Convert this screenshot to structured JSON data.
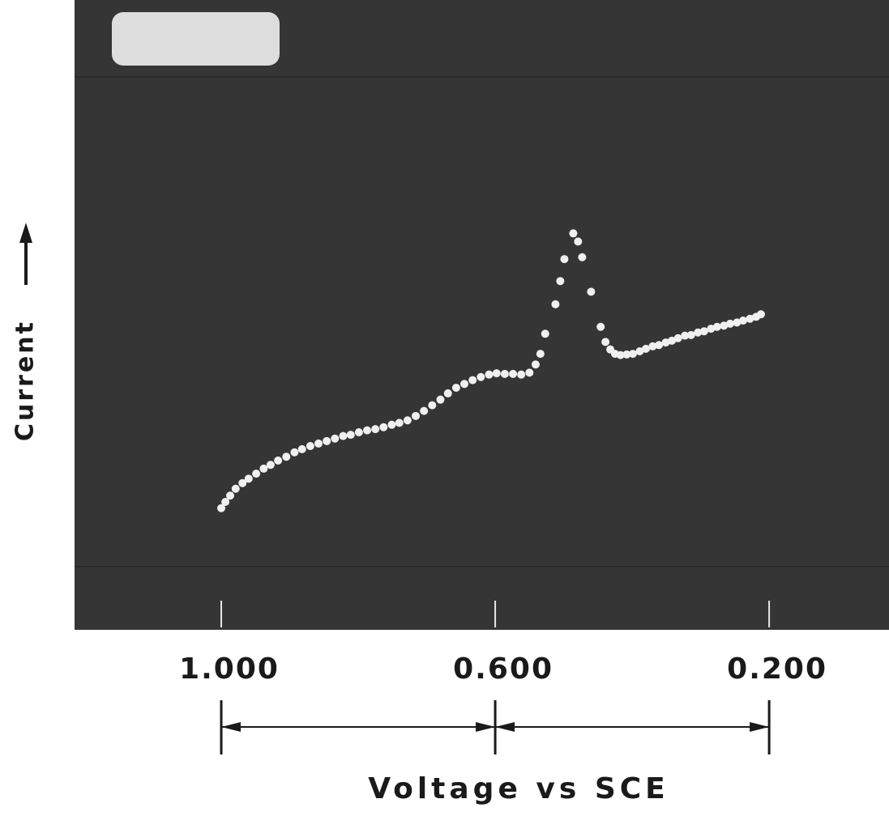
{
  "chart_data": {
    "type": "scatter",
    "xlabel": "Voltage vs SCE",
    "ylabel": "Current",
    "color": "#f0f0f0",
    "xlim": [
      1.2,
      0.025
    ],
    "ylim": [
      0,
      100
    ],
    "xticks": [
      {
        "value": 1.0,
        "label": "1.000"
      },
      {
        "value": 0.6,
        "label": "0.600"
      },
      {
        "value": 0.2,
        "label": "0.200"
      }
    ],
    "x": [
      1.0,
      0.994,
      0.987,
      0.979,
      0.969,
      0.96,
      0.949,
      0.938,
      0.928,
      0.917,
      0.905,
      0.893,
      0.882,
      0.87,
      0.858,
      0.846,
      0.834,
      0.822,
      0.811,
      0.799,
      0.787,
      0.775,
      0.763,
      0.751,
      0.74,
      0.728,
      0.716,
      0.704,
      0.692,
      0.68,
      0.669,
      0.657,
      0.645,
      0.633,
      0.621,
      0.609,
      0.598,
      0.586,
      0.574,
      0.562,
      0.55,
      0.541,
      0.534,
      0.527,
      0.512,
      0.505,
      0.499,
      0.486,
      0.479,
      0.473,
      0.46,
      0.446,
      0.439,
      0.432,
      0.425,
      0.417,
      0.408,
      0.399,
      0.389,
      0.38,
      0.37,
      0.361,
      0.351,
      0.342,
      0.333,
      0.323,
      0.314,
      0.304,
      0.295,
      0.285,
      0.276,
      0.266,
      0.257,
      0.247,
      0.238,
      0.228,
      0.219,
      0.212
    ],
    "values": [
      19.0,
      20.0,
      21.0,
      22.1,
      23.0,
      23.7,
      24.5,
      25.3,
      25.9,
      26.6,
      27.2,
      27.9,
      28.4,
      28.9,
      29.3,
      29.7,
      30.1,
      30.5,
      30.7,
      31.1,
      31.4,
      31.6,
      31.9,
      32.3,
      32.6,
      33.0,
      33.7,
      34.5,
      35.4,
      36.3,
      37.3,
      38.2,
      38.8,
      39.4,
      39.9,
      40.3,
      40.5,
      40.4,
      40.4,
      40.3,
      40.6,
      41.9,
      43.6,
      46.8,
      51.5,
      55.2,
      58.7,
      62.8,
      61.5,
      59.0,
      53.5,
      47.9,
      45.5,
      44.3,
      43.6,
      43.4,
      43.5,
      43.6,
      44.0,
      44.4,
      44.8,
      45.0,
      45.4,
      45.7,
      46.1,
      46.5,
      46.6,
      47.0,
      47.2,
      47.6,
      47.9,
      48.1,
      48.4,
      48.6,
      48.9,
      49.2,
      49.5,
      49.9
    ]
  }
}
